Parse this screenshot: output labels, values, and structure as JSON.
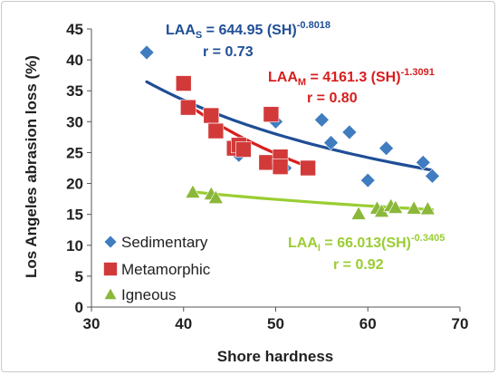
{
  "chart_data": {
    "type": "scatter",
    "xlabel": "Shore hardness",
    "ylabel": "Los Angeles abrasion loss (%)",
    "xlim": [
      30,
      70
    ],
    "ylim": [
      0,
      45
    ],
    "x_ticks": [
      "30",
      "40",
      "50",
      "60",
      "70"
    ],
    "y_ticks": [
      "0",
      "5",
      "10",
      "15",
      "20",
      "25",
      "30",
      "35",
      "40",
      "45"
    ],
    "grid": false,
    "legend_position": "bottom-left",
    "series": [
      {
        "name": "Sedimentary",
        "marker": "diamond",
        "color": "#3f7cc0",
        "points": [
          [
            36,
            41.2
          ],
          [
            46,
            24.6
          ],
          [
            50,
            30
          ],
          [
            51,
            22.5
          ],
          [
            55,
            30.3
          ],
          [
            56,
            26.6
          ],
          [
            58,
            28.3
          ],
          [
            60,
            20.5
          ],
          [
            62,
            25.7
          ],
          [
            66,
            23.4
          ],
          [
            67,
            21.2
          ]
        ],
        "fit": {
          "label_parts": [
            "LAA",
            "S",
            " = 644.95 (SH)",
            "-0.8018"
          ],
          "r": "r = 0.73",
          "a": 644.95,
          "b": -0.8018,
          "x_range": [
            36,
            67
          ],
          "color": "#1f4e96"
        }
      },
      {
        "name": "Metamorphic",
        "marker": "square",
        "color": "#d23a3a",
        "points": [
          [
            40,
            36.2
          ],
          [
            40.5,
            32.3
          ],
          [
            43,
            31
          ],
          [
            43.5,
            28.5
          ],
          [
            45.5,
            25.7
          ],
          [
            46,
            26.2
          ],
          [
            46.5,
            25.5
          ],
          [
            49,
            23.4
          ],
          [
            49.5,
            31.2
          ],
          [
            50.5,
            24.3
          ],
          [
            50.5,
            22.7
          ],
          [
            53.5,
            22.5
          ]
        ],
        "fit": {
          "label_parts": [
            "LAA",
            "M",
            " = 4161.3 (SH)",
            "-1.3091"
          ],
          "r": "r = 0.80",
          "a": 4161.3,
          "b": -1.3091,
          "x_range": [
            40,
            53.5
          ],
          "color": "#d81e1e"
        }
      },
      {
        "name": "Igneous",
        "marker": "triangle",
        "color": "#8bb83a",
        "points": [
          [
            41,
            18.6
          ],
          [
            43,
            18.3
          ],
          [
            43.5,
            17.7
          ],
          [
            59,
            15.1
          ],
          [
            61,
            16
          ],
          [
            61.5,
            15.5
          ],
          [
            62.5,
            16.4
          ],
          [
            63,
            16.1
          ],
          [
            65,
            16
          ],
          [
            66.5,
            15.9
          ]
        ],
        "fit": {
          "label_parts": [
            "LAA",
            "I",
            " = 66.013(SH)",
            "-0.3405"
          ],
          "r": "r = 0.92",
          "a": 66.013,
          "b": -0.3405,
          "x_range": [
            41,
            67
          ],
          "color": "#9acd32"
        }
      }
    ]
  }
}
